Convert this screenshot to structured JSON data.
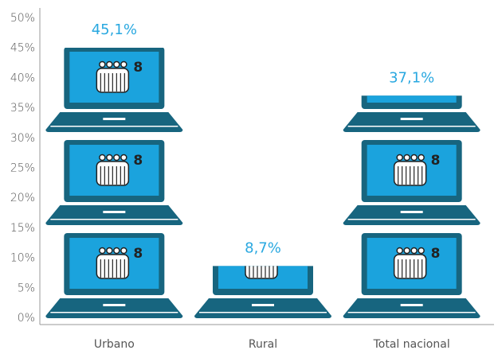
{
  "chart_data": {
    "type": "pictograph",
    "categories": [
      "Urbano",
      "Rural",
      "Total nacional"
    ],
    "values": [
      45.1,
      8.7,
      37.1
    ],
    "value_labels": [
      "45,1%",
      "8,7%",
      "37,1%"
    ],
    "icon_text": "8",
    "color": "#1ba3dd",
    "ylim": [
      0,
      50
    ],
    "yticks": [
      {
        "value": 0,
        "label": "0%"
      },
      {
        "value": 5,
        "label": "5%"
      },
      {
        "value": 10,
        "label": "10%"
      },
      {
        "value": 15,
        "label": "15%"
      },
      {
        "value": 20,
        "label": "20%"
      },
      {
        "value": 25,
        "label": "25%"
      },
      {
        "value": 30,
        "label": "30%"
      },
      {
        "value": 35,
        "label": "35%"
      },
      {
        "value": 40,
        "label": "40%"
      },
      {
        "value": 45,
        "label": "45%"
      },
      {
        "value": 50,
        "label": "50%"
      }
    ]
  }
}
